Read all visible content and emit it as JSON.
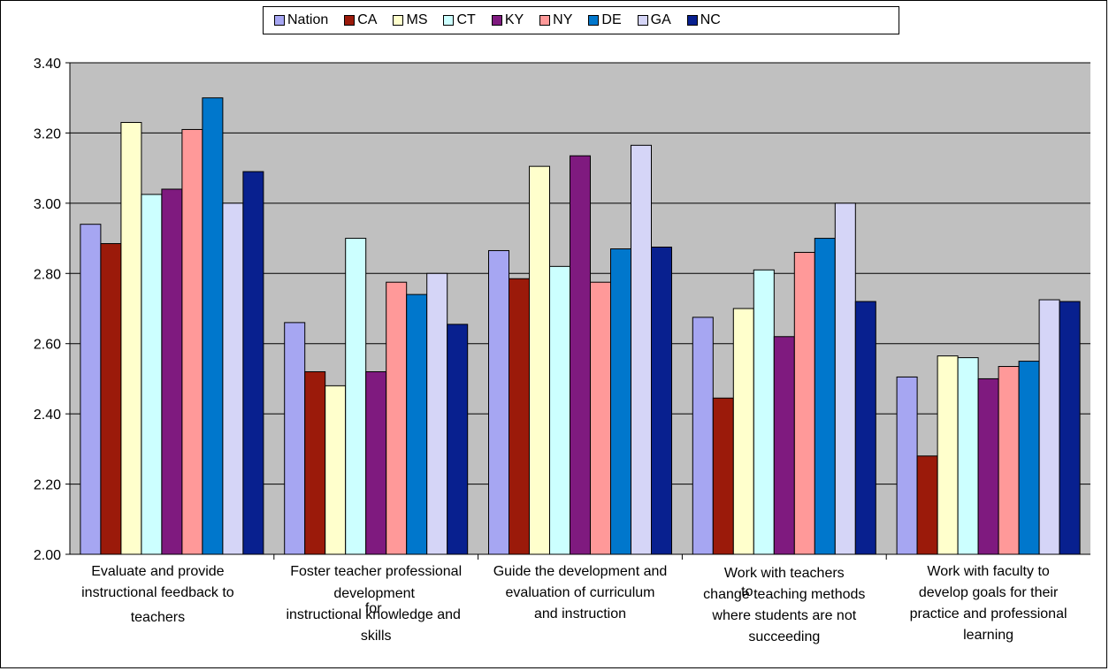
{
  "chart_data": {
    "type": "bar",
    "categories": [
      [
        "Evaluate and provide",
        "instructional feedback to",
        "teachers"
      ],
      [
        "Foster teacher professional",
        "development",
        "for",
        "instructional knowledge and",
        "skills"
      ],
      [
        "Guide the development and",
        "evaluation of curriculum",
        "and instruction"
      ],
      [
        "Work with teachers",
        "to",
        "change teaching methods",
        "where students are not",
        "succeeding"
      ],
      [
        "Work with faculty to",
        "develop goals for their",
        "practice and professional",
        "learning"
      ]
    ],
    "series": [
      {
        "name": "Nation",
        "color": "#a6a6f2",
        "values": [
          2.94,
          2.66,
          2.865,
          2.675,
          2.505
        ]
      },
      {
        "name": "CA",
        "color": "#9b1a0a",
        "values": [
          2.885,
          2.52,
          2.785,
          2.445,
          2.28
        ]
      },
      {
        "name": "MS",
        "color": "#ffffcc",
        "values": [
          3.23,
          2.48,
          3.105,
          2.7,
          2.565
        ]
      },
      {
        "name": "CT",
        "color": "#ccffff",
        "values": [
          3.025,
          2.9,
          2.82,
          2.81,
          2.56
        ]
      },
      {
        "name": "KY",
        "color": "#7f1a7f",
        "values": [
          3.04,
          2.52,
          3.135,
          2.62,
          2.5
        ]
      },
      {
        "name": "NY",
        "color": "#ff9999",
        "values": [
          3.21,
          2.775,
          2.775,
          2.86,
          2.535
        ]
      },
      {
        "name": "DE",
        "color": "#0077cc",
        "values": [
          3.3,
          2.74,
          2.87,
          2.9,
          2.55
        ]
      },
      {
        "name": "GA",
        "color": "#d5d5f7",
        "values": [
          3.0,
          2.8,
          3.165,
          3.0,
          2.725
        ]
      },
      {
        "name": "NC",
        "color": "#08208f",
        "values": [
          3.09,
          2.655,
          2.875,
          2.72,
          2.72
        ]
      }
    ],
    "ylim": [
      2.0,
      3.4
    ],
    "yticks": [
      "2.00",
      "2.20",
      "2.40",
      "2.60",
      "2.80",
      "3.00",
      "3.20",
      "3.40"
    ],
    "grid": true,
    "plot_background": "#c0c0c0",
    "legend_position": "top"
  }
}
